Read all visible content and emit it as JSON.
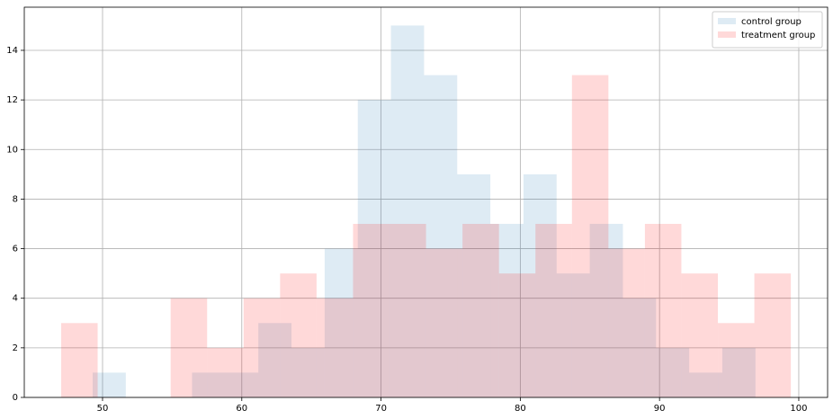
{
  "chart_data": {
    "type": "histogram",
    "series": [
      {
        "name": "control group",
        "color": "#1f77b4",
        "alpha": 0.15,
        "bins": [
          49.29,
          51.67,
          54.05,
          56.43,
          58.81,
          61.19,
          63.57,
          65.95,
          68.33,
          70.71,
          73.09,
          75.47,
          77.85,
          80.23,
          82.61,
          84.99,
          87.37,
          89.75,
          92.13,
          94.51,
          96.89
        ],
        "values": [
          1,
          0,
          0,
          1,
          1,
          3,
          2,
          6,
          12,
          15,
          13,
          9,
          7,
          9,
          5,
          7,
          4,
          2,
          1,
          2
        ]
      },
      {
        "name": "treatment group",
        "color": "#ff0000",
        "alpha": 0.15,
        "bins": [
          47.03,
          49.65,
          52.27,
          54.89,
          57.51,
          60.13,
          62.75,
          65.37,
          67.99,
          70.61,
          73.23,
          75.85,
          78.47,
          81.09,
          83.71,
          86.33,
          88.95,
          91.57,
          94.19,
          96.81,
          99.43
        ],
        "values": [
          3,
          0,
          0,
          4,
          2,
          4,
          5,
          4,
          7,
          7,
          6,
          7,
          5,
          7,
          13,
          6,
          7,
          5,
          3,
          5
        ]
      }
    ],
    "xlim": [
      44.38,
      102.07
    ],
    "xticks": [
      50,
      60,
      70,
      80,
      90,
      100
    ],
    "ylim": [
      0,
      15.74
    ],
    "yticks": [
      0,
      2,
      4,
      6,
      8,
      10,
      12,
      14
    ],
    "grid": true,
    "legend": "upper right"
  }
}
